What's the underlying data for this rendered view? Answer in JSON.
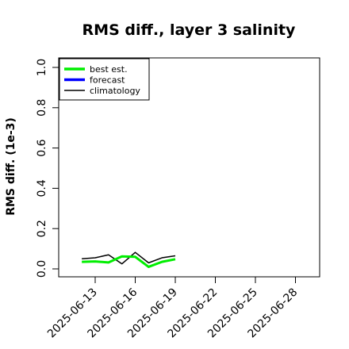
{
  "chart_data": {
    "type": "line",
    "title": "RMS diff., layer 3 salinity",
    "xlabel": "",
    "ylabel": "RMS diff. (1e-3)",
    "ylim": [
      0.0,
      1.0
    ],
    "yticks": [
      "0.0",
      "0.2",
      "0.4",
      "0.6",
      "0.8",
      "1.0"
    ],
    "x_dates": [
      "2025-06-12",
      "2025-06-13",
      "2025-06-14",
      "2025-06-15",
      "2025-06-16",
      "2025-06-17",
      "2025-06-18",
      "2025-06-19"
    ],
    "xticks": [
      "2025-06-13",
      "2025-06-16",
      "2025-06-19",
      "2025-06-22",
      "2025-06-25",
      "2025-06-28"
    ],
    "highlighted_xtick": "2025-06-19",
    "highlight_color": "#228b22",
    "grid": false,
    "legend_position": "top-left",
    "series": [
      {
        "name": "best est.",
        "color": "#00ee00",
        "values": [
          0.035,
          0.037,
          0.032,
          0.062,
          0.06,
          0.01,
          0.035,
          0.048
        ]
      },
      {
        "name": "forecast",
        "color": "#0000ff",
        "values": []
      },
      {
        "name": "climatology",
        "color": "#000000",
        "values": [
          0.05,
          0.055,
          0.07,
          0.025,
          0.082,
          0.03,
          0.055,
          0.065
        ]
      }
    ]
  }
}
